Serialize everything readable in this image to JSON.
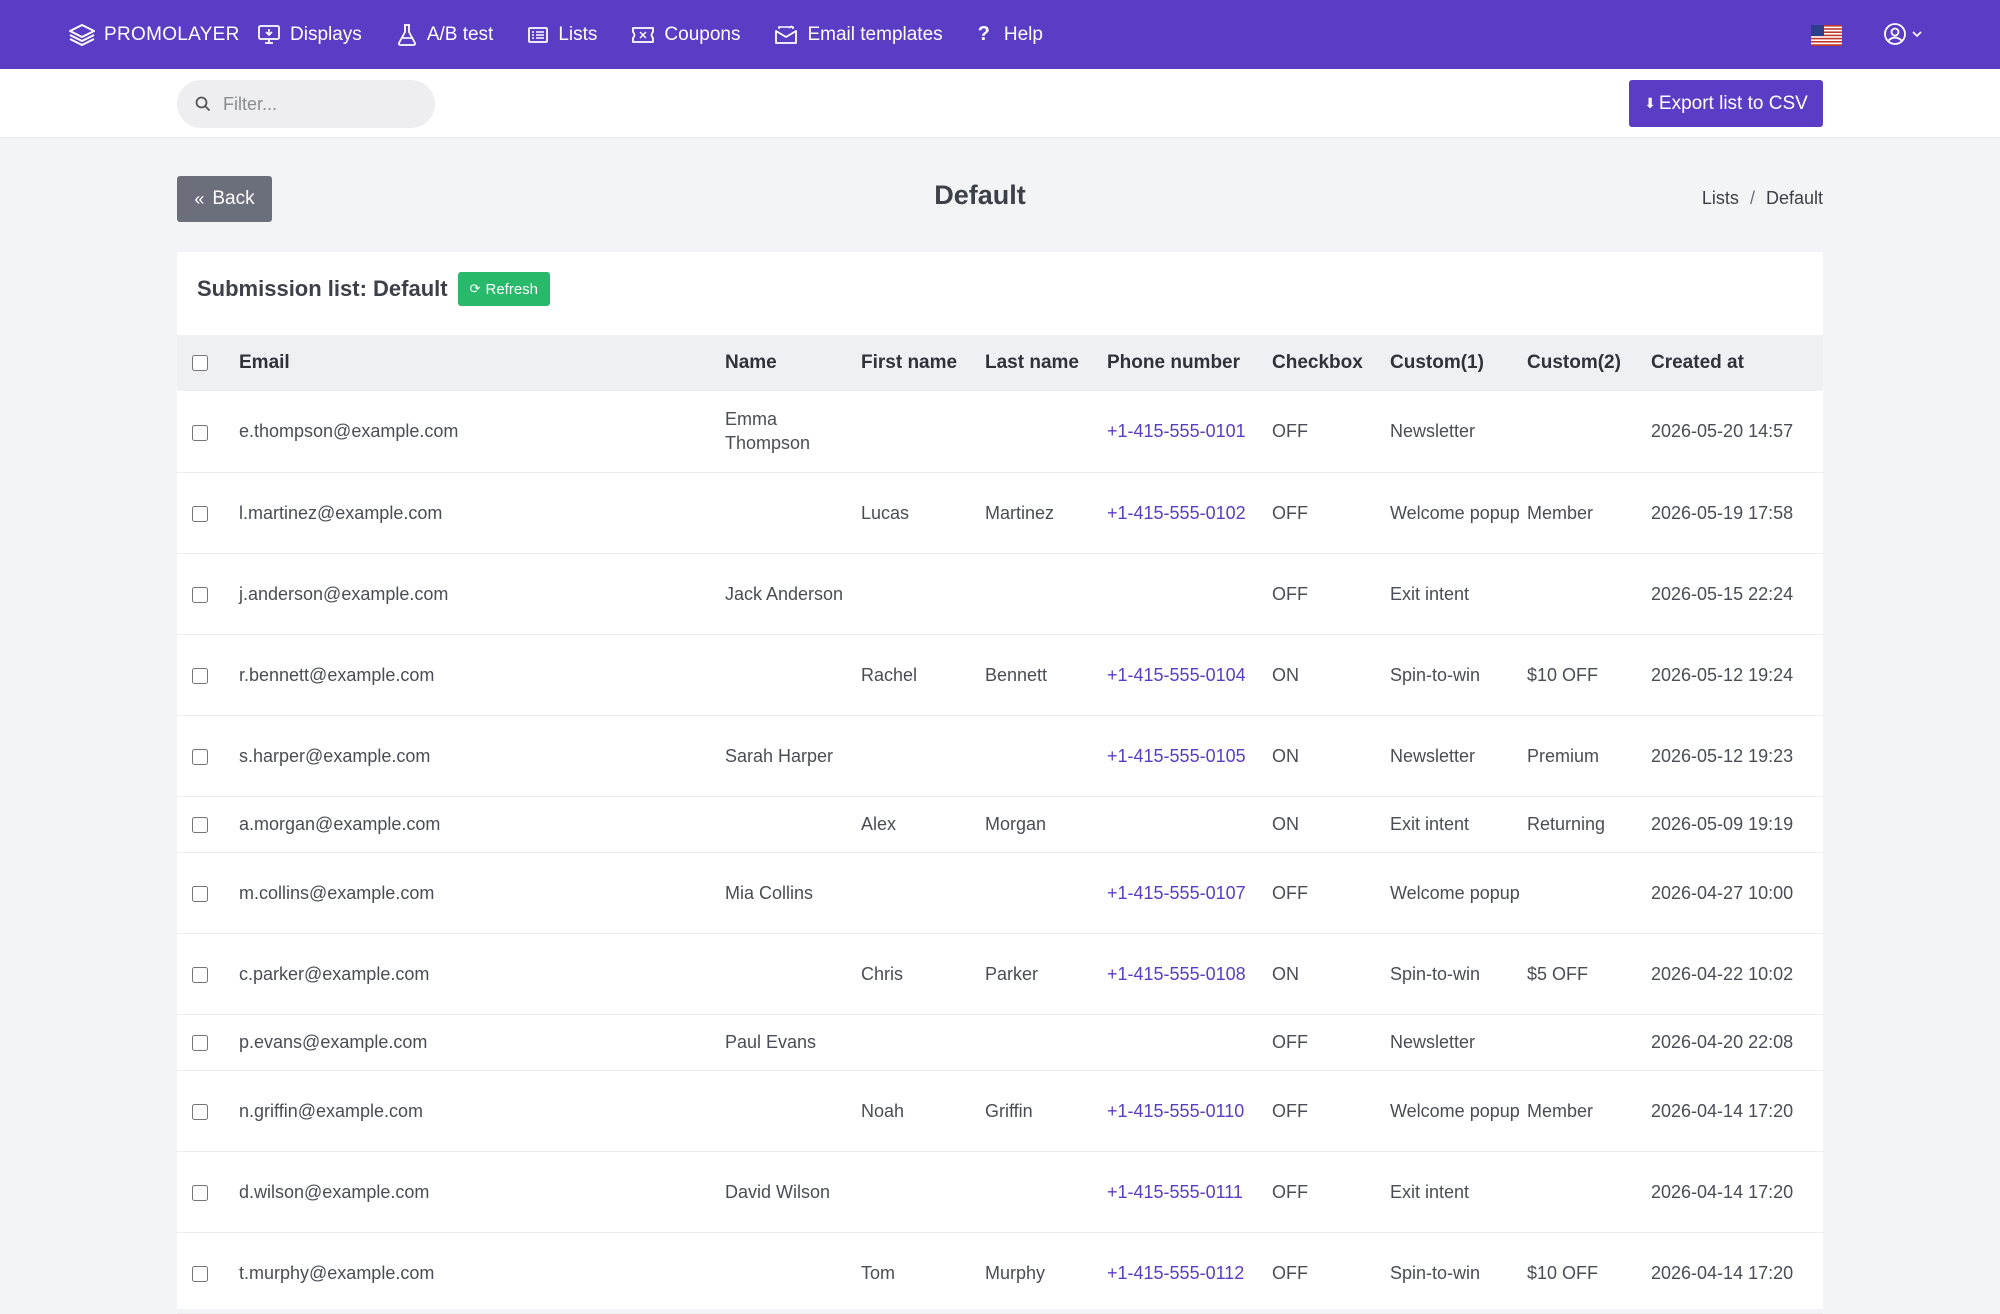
{
  "topbar": {
    "brand": "PROMOLAYER",
    "nav": [
      {
        "label": "Displays",
        "icon": "displays-icon"
      },
      {
        "label": "A/B test",
        "icon": "flask-icon"
      },
      {
        "label": "Lists",
        "icon": "list-icon"
      },
      {
        "label": "Coupons",
        "icon": "coupon-icon"
      },
      {
        "label": "Email templates",
        "icon": "email-icon"
      },
      {
        "label": "Help",
        "icon": "help-icon"
      }
    ],
    "color": "#5b3cc4"
  },
  "toolbar": {
    "filter_placeholder": "Filter...",
    "export_label": "Export list to CSV"
  },
  "page": {
    "back_label": "Back",
    "title": "Default",
    "breadcrumb": [
      "Lists",
      "Default"
    ]
  },
  "card": {
    "title": "Submission list: Default",
    "refresh_label": "Refresh"
  },
  "table": {
    "headers": [
      "Email",
      "Name",
      "First name",
      "Last name",
      "Phone number",
      "Checkbox",
      "Custom(1)",
      "Custom(2)",
      "Created at"
    ],
    "rows": [
      {
        "email": "e.thompson@example.com",
        "name": "Emma Thompson",
        "first": "",
        "last": "",
        "phone": "+1-415-555-0101",
        "checkbox": "OFF",
        "custom1": "Newsletter",
        "custom2": "",
        "created": "2026-05-20 14:57"
      },
      {
        "email": "l.martinez@example.com",
        "name": "",
        "first": "Lucas",
        "last": "Martinez",
        "phone": "+1-415-555-0102",
        "checkbox": "OFF",
        "custom1": "Welcome popup",
        "custom2": "Member",
        "created": "2026-05-19 17:58"
      },
      {
        "email": "j.anderson@example.com",
        "name": "Jack Anderson",
        "first": "",
        "last": "",
        "phone": "",
        "checkbox": "OFF",
        "custom1": "Exit intent",
        "custom2": "",
        "created": "2026-05-15 22:24"
      },
      {
        "email": "r.bennett@example.com",
        "name": "",
        "first": "Rachel",
        "last": "Bennett",
        "phone": "+1-415-555-0104",
        "checkbox": "ON",
        "custom1": "Spin-to-win",
        "custom2": "$10 OFF",
        "created": "2026-05-12 19:24"
      },
      {
        "email": "s.harper@example.com",
        "name": "Sarah Harper",
        "first": "",
        "last": "",
        "phone": "+1-415-555-0105",
        "checkbox": "ON",
        "custom1": "Newsletter",
        "custom2": "Premium",
        "created": "2026-05-12 19:23"
      },
      {
        "email": "a.morgan@example.com",
        "name": "",
        "first": "Alex",
        "last": "Morgan",
        "phone": "",
        "checkbox": "ON",
        "custom1": "Exit intent",
        "custom2": "Returning",
        "created": "2026-05-09 19:19"
      },
      {
        "email": "m.collins@example.com",
        "name": "Mia Collins",
        "first": "",
        "last": "",
        "phone": "+1-415-555-0107",
        "checkbox": "OFF",
        "custom1": "Welcome popup",
        "custom2": "",
        "created": "2026-04-27 10:00"
      },
      {
        "email": "c.parker@example.com",
        "name": "",
        "first": "Chris",
        "last": "Parker",
        "phone": "+1-415-555-0108",
        "checkbox": "ON",
        "custom1": "Spin-to-win",
        "custom2": "$5 OFF",
        "created": "2026-04-22 10:02"
      },
      {
        "email": "p.evans@example.com",
        "name": "Paul Evans",
        "first": "",
        "last": "",
        "phone": "",
        "checkbox": "OFF",
        "custom1": "Newsletter",
        "custom2": "",
        "created": "2026-04-20 22:08"
      },
      {
        "email": "n.griffin@example.com",
        "name": "",
        "first": "Noah",
        "last": "Griffin",
        "phone": "+1-415-555-0110",
        "checkbox": "OFF",
        "custom1": "Welcome popup",
        "custom2": "Member",
        "created": "2026-04-14 17:20"
      },
      {
        "email": "d.wilson@example.com",
        "name": "David Wilson",
        "first": "",
        "last": "",
        "phone": "+1-415-555-0111",
        "checkbox": "OFF",
        "custom1": "Exit intent",
        "custom2": "",
        "created": "2026-04-14 17:20"
      },
      {
        "email": "t.murphy@example.com",
        "name": "",
        "first": "Tom",
        "last": "Murphy",
        "phone": "+1-415-555-0112",
        "checkbox": "OFF",
        "custom1": "Spin-to-win",
        "custom2": "$10 OFF",
        "created": "2026-04-14 17:20"
      }
    ]
  }
}
